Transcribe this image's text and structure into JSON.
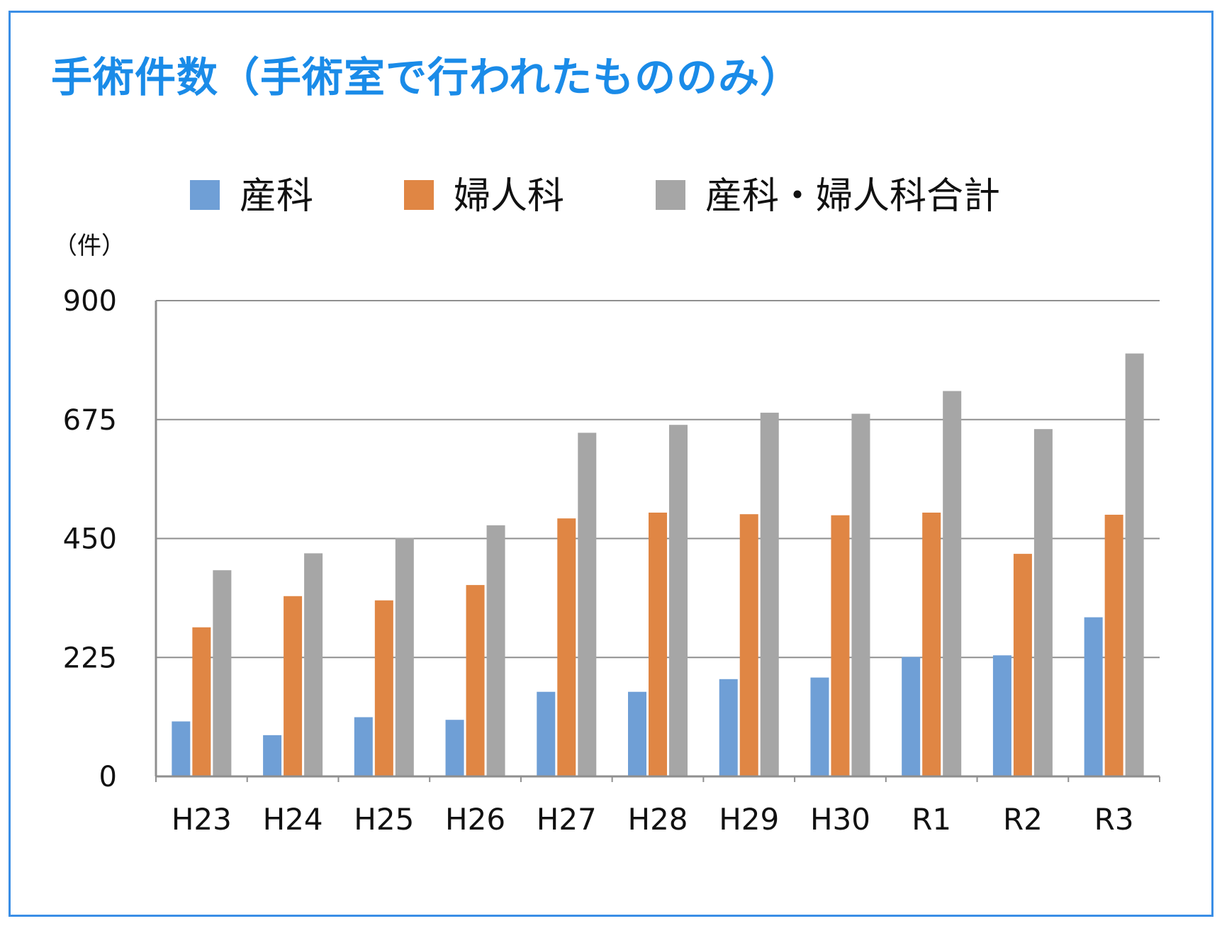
{
  "chart_data": {
    "type": "bar",
    "title": "手術件数（手術室で行われたもののみ）",
    "unit_label": "（件）",
    "ylim": [
      0,
      900
    ],
    "yticks": [
      0,
      225,
      450,
      675,
      900
    ],
    "grid": true,
    "legend_position": "top",
    "categories": [
      "H23",
      "H24",
      "H25",
      "H26",
      "H27",
      "H28",
      "H29",
      "H30",
      "R1",
      "R2",
      "R3"
    ],
    "series": [
      {
        "name": "産科",
        "color": "#6f9fd6",
        "values": [
          104,
          78,
          112,
          107,
          160,
          160,
          184,
          187,
          226,
          229,
          301
        ]
      },
      {
        "name": "婦人科",
        "color": "#e08644",
        "values": [
          282,
          341,
          333,
          362,
          488,
          499,
          496,
          494,
          499,
          421,
          495
        ]
      },
      {
        "name": "産科・婦人科合計",
        "color": "#a6a6a6",
        "values": [
          390,
          422,
          451,
          475,
          650,
          665,
          688,
          686,
          729,
          657,
          800
        ]
      }
    ]
  }
}
